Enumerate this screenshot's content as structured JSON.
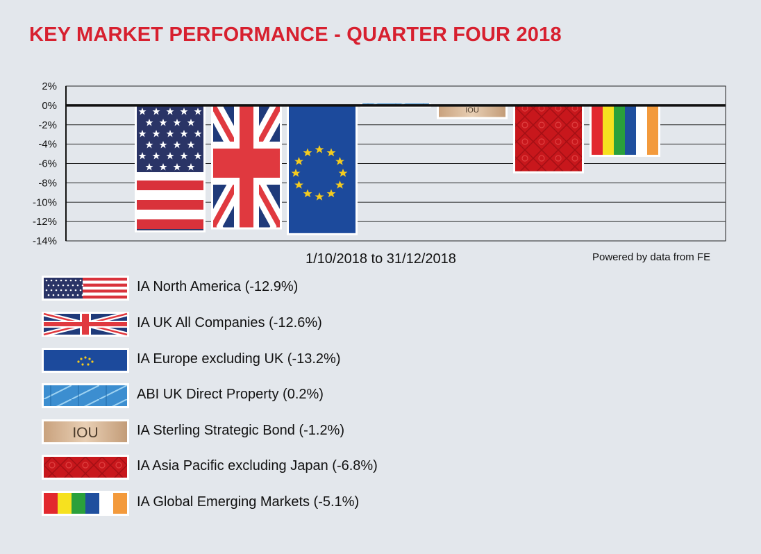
{
  "title": "KEY MARKET PERFORMANCE - QUARTER FOUR 2018",
  "date_range": "1/10/2018 to 31/12/2018",
  "source": "Powered by data from FE",
  "colors": {
    "title": "#d7202f",
    "background": "#e3e7ec",
    "us_red": "#d9323b",
    "us_blue": "#2a3466",
    "uk_blue": "#1f3a7a",
    "uk_red": "#e0393f",
    "eu_blue": "#1c4a9c",
    "eu_star": "#f4cb1f",
    "iou_tan": "#d9b898",
    "asia_red": "#c8171c",
    "property_blue": "#3c8ed0"
  },
  "chart_data": {
    "type": "bar",
    "categories": [
      "IA North America (-12.9%)",
      "IA UK All Companies (-12.6%)",
      "IA Europe excluding UK (-13.2%)",
      "ABI UK Direct Property (0.2%)",
      "IA Sterling Strategic Bond (-1.2%)",
      "IA Asia Pacific excluding Japan (-6.8%)",
      "IA Global Emerging Markets (-5.1%)"
    ],
    "values": [
      -12.9,
      -12.6,
      -13.2,
      0.2,
      -1.2,
      -6.8,
      -5.1
    ],
    "ylim": [
      -14,
      2
    ],
    "yticks": [
      "2%",
      "0%",
      "-2%",
      "-4%",
      "-6%",
      "-8%",
      "-10%",
      "-12%",
      "-14%"
    ],
    "ytick_values": [
      2,
      0,
      -2,
      -4,
      -6,
      -8,
      -10,
      -12,
      -14
    ],
    "xlabel": "1/10/2018 to 31/12/2018",
    "grid": true,
    "legend": "bottom",
    "bar_fills": [
      "us-flag",
      "uk-flag",
      "eu-flag",
      "property-glass",
      "iou-note",
      "asia-pattern",
      "emerging-stripes"
    ],
    "iou_text": "IOU"
  }
}
